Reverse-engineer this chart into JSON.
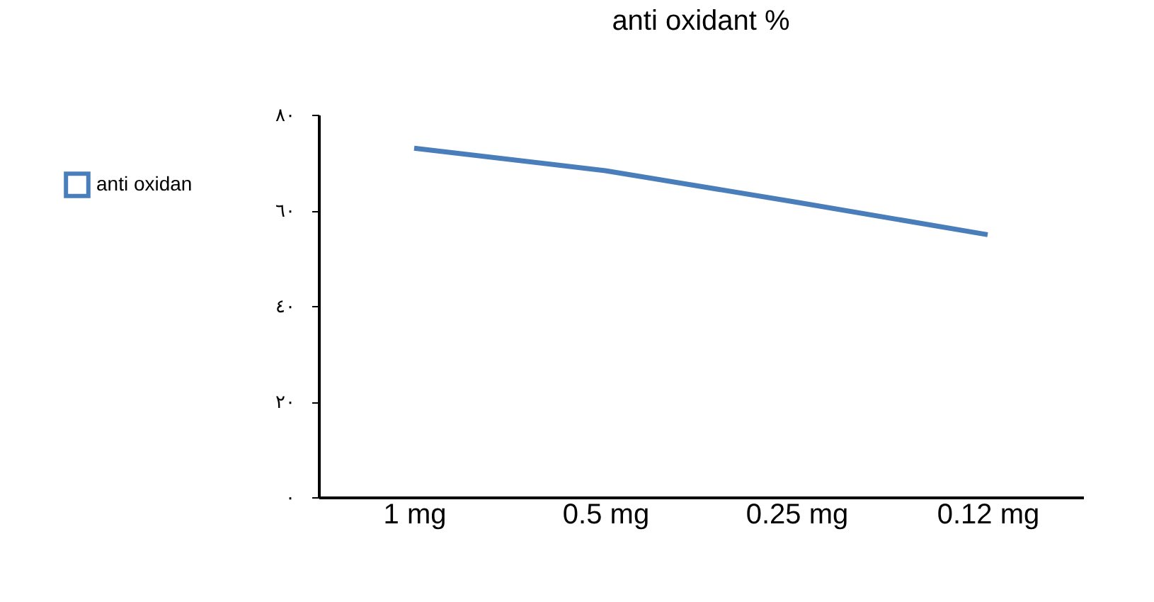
{
  "chart_data": {
    "type": "line",
    "title": "anti oxidant %",
    "categories": [
      "1 mg",
      "0.5 mg",
      "0.25 mg",
      "0.12 mg"
    ],
    "series": [
      {
        "name": "anti oxidan",
        "color": "#4a7ebb",
        "values": [
          73,
          68.3,
          61.7,
          54.9
        ]
      }
    ],
    "ylim": [
      0,
      80
    ],
    "yticks": [
      {
        "value": 0,
        "label": "٠"
      },
      {
        "value": 20,
        "label": "٢٠"
      },
      {
        "value": 40,
        "label": "٤٠"
      },
      {
        "value": 60,
        "label": "٦٠"
      },
      {
        "value": 80,
        "label": "٨٠"
      }
    ],
    "grid": false,
    "legend": "left",
    "marker": "none",
    "line_style": "solid"
  }
}
